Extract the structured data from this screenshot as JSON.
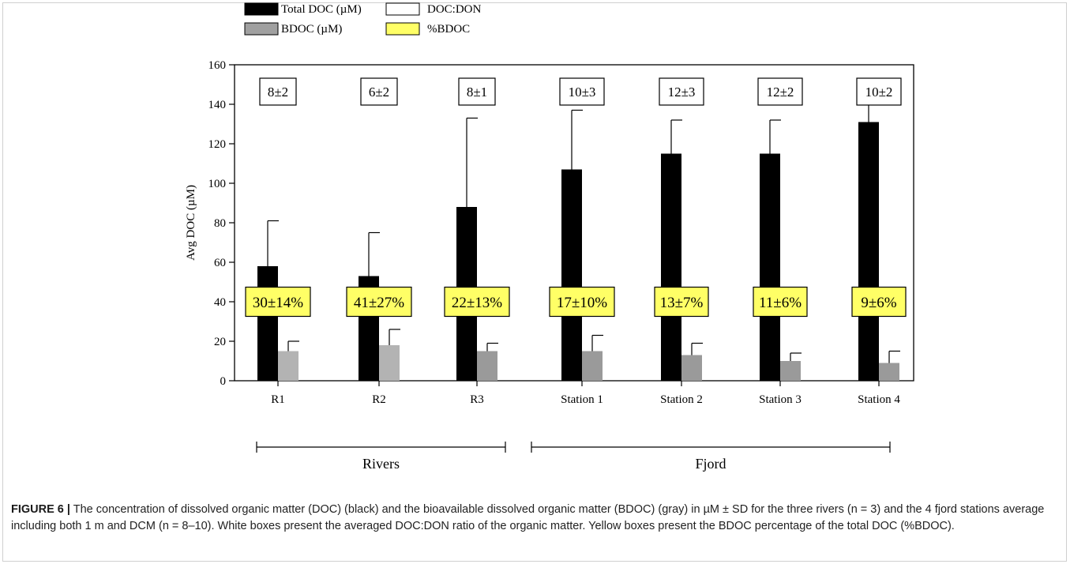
{
  "figure": {
    "label": "FIGURE 6 |",
    "caption": " The concentration of dissolved organic matter (DOC) (black) and the bioavailable dissolved organic matter (BDOC) (gray) in µM ± SD for the three rivers (n = 3) and the 4 fjord stations average including both 1 m and DCM (n = 8–10).  White boxes present the averaged DOC:DON ratio of the organic matter. Yellow boxes present the BDOC percentage of the total DOC (%BDOC)."
  },
  "chart_data": {
    "type": "bar",
    "ylabel": "Avg DOC (µM)",
    "ylim": [
      0,
      160
    ],
    "yticks": [
      0,
      20,
      40,
      60,
      80,
      100,
      120,
      140,
      160
    ],
    "grid": false,
    "legend_position": "top-left",
    "legend": [
      {
        "label": "Total DOC (µM)",
        "color": "#000000"
      },
      {
        "label": "DOC:DON",
        "color": "#ffffff"
      },
      {
        "label": "BDOC (µM)",
        "color": "#a0a0a0"
      },
      {
        "label": "%BDOC",
        "color": "#ffff66"
      }
    ],
    "categories": [
      "R1",
      "R2",
      "R3",
      "Station 1",
      "Station 2",
      "Station 3",
      "Station 4"
    ],
    "series": [
      {
        "name": "Total DOC (µM)",
        "color": "#000000",
        "values": [
          58,
          53,
          88,
          107,
          115,
          115,
          131
        ],
        "error": [
          23,
          22,
          45,
          30,
          17,
          17,
          15
        ]
      },
      {
        "name": "BDOC (µM)",
        "colors": [
          "#b3b3b3",
          "#b3b3b3",
          "#9a9a9a",
          "#9a9a9a",
          "#9a9a9a",
          "#9a9a9a",
          "#9a9a9a"
        ],
        "values": [
          15,
          18,
          15,
          15,
          13,
          10,
          9
        ],
        "error": [
          5,
          8,
          4,
          8,
          6,
          4,
          6
        ]
      }
    ],
    "annotations": {
      "doc_don": [
        "8±2",
        "6±2",
        "8±1",
        "10±3",
        "12±3",
        "12±2",
        "10±2"
      ],
      "pct_bdoc": [
        "30±14%",
        "41±27%",
        "22±13%",
        "17±10%",
        "13±7%",
        "11±6%",
        "9±6%"
      ],
      "pct_bdoc_level": 40
    },
    "groups": [
      {
        "label": "Rivers",
        "from": 0,
        "to": 2
      },
      {
        "label": "Fjord",
        "from": 3,
        "to": 6
      }
    ]
  }
}
